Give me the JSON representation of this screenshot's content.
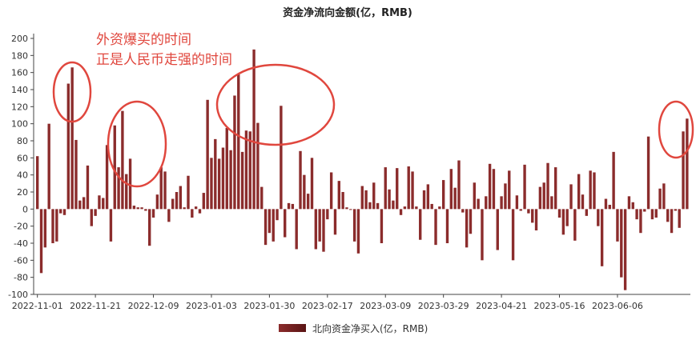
{
  "chart_data": {
    "type": "bar",
    "title": "资金净流向金额(亿，RMB)",
    "legend": {
      "label": "北向资金净买入(亿，RMB)",
      "position": "bottom"
    },
    "annotation": {
      "lines": [
        "外资爆买的时间",
        "正是人民币走强的时间"
      ],
      "color": "#e0473e"
    },
    "colors": {
      "bar": "#8b2c2c",
      "bar_dark": "#5a1414",
      "circle": "#e0473e",
      "axis": "#444444"
    },
    "ylim": [
      -100,
      200
    ],
    "yticks": [
      200,
      180,
      160,
      140,
      120,
      100,
      80,
      60,
      40,
      20,
      0,
      -20,
      -40,
      -60,
      -80,
      -100
    ],
    "grid": false,
    "xtick_labels": [
      "2022-11-01",
      "2022-11-21",
      "2022-12-09",
      "2023-01-03",
      "2023-01-30",
      "2023-02-17",
      "2023-03-09",
      "2023-03-29",
      "2023-04-21",
      "2023-05-16",
      "2023-06-06"
    ],
    "xtick_index": [
      0,
      15,
      30,
      45,
      60,
      75,
      90,
      105,
      120,
      135,
      150
    ],
    "values": [
      62,
      -75,
      -45,
      100,
      -40,
      -38,
      -5,
      -7,
      147,
      166,
      81,
      10,
      14,
      51,
      -20,
      -8,
      16,
      13,
      75,
      -38,
      98,
      49,
      115,
      41,
      59,
      4,
      2,
      2,
      -2,
      -43,
      -10,
      17,
      49,
      44,
      -15,
      12,
      20,
      27,
      2,
      39,
      -10,
      3,
      -5,
      19,
      128,
      60,
      82,
      59,
      72,
      95,
      69,
      133,
      158,
      67,
      92,
      91,
      187,
      101,
      26,
      -42,
      -28,
      -38,
      -13,
      121,
      -33,
      7,
      6,
      -47,
      68,
      40,
      18,
      60,
      -47,
      -38,
      -50,
      -12,
      43,
      -30,
      33,
      20,
      2,
      -1,
      -38,
      -52,
      27,
      22,
      8,
      31,
      7,
      -40,
      49,
      23,
      10,
      48,
      -7,
      3,
      50,
      44,
      3,
      -36,
      22,
      29,
      6,
      -42,
      3,
      34,
      -40,
      47,
      25,
      57,
      -4,
      -45,
      -29,
      31,
      12,
      -60,
      15,
      53,
      47,
      -48,
      15,
      30,
      45,
      -60,
      16,
      -2,
      52,
      -5,
      -16,
      -25,
      26,
      31,
      54,
      15,
      49,
      -10,
      -30,
      -20,
      29,
      -37,
      41,
      17,
      -8,
      45,
      43,
      -20,
      -67,
      12,
      5,
      67,
      -38,
      -80,
      -95,
      15,
      8,
      -12,
      -28,
      -3,
      85,
      -12,
      -10,
      24,
      30,
      -15,
      -28,
      -2,
      -22,
      91,
      106
    ]
  }
}
